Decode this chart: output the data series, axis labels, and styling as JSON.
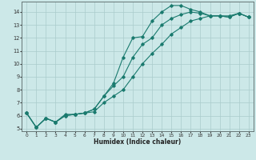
{
  "title": "",
  "xlabel": "Humidex (Indice chaleur)",
  "ylabel": "",
  "bg_color": "#cce8e8",
  "grid_color": "#aacccc",
  "line_color": "#1a7a6e",
  "xlim": [
    -0.5,
    23.5
  ],
  "ylim": [
    4.8,
    14.8
  ],
  "yticks": [
    5,
    6,
    7,
    8,
    9,
    10,
    11,
    12,
    13,
    14
  ],
  "xticks": [
    0,
    1,
    2,
    3,
    4,
    5,
    6,
    7,
    8,
    9,
    10,
    11,
    12,
    13,
    14,
    15,
    16,
    17,
    18,
    19,
    20,
    21,
    22,
    23
  ],
  "line1_x": [
    0,
    1,
    2,
    3,
    4,
    5,
    6,
    7,
    8,
    9,
    10,
    11,
    12,
    13,
    14,
    15,
    16,
    17,
    18,
    19,
    20,
    21,
    22,
    23
  ],
  "line1_y": [
    6.2,
    5.1,
    5.8,
    5.5,
    6.1,
    6.1,
    6.2,
    6.5,
    7.5,
    8.5,
    10.5,
    12.0,
    12.1,
    13.3,
    14.0,
    14.5,
    14.5,
    14.2,
    14.0,
    13.7,
    13.7,
    13.7,
    13.9,
    13.6
  ],
  "line2_x": [
    0,
    1,
    2,
    3,
    4,
    5,
    6,
    7,
    8,
    9,
    10,
    11,
    12,
    13,
    14,
    15,
    16,
    17,
    18,
    19,
    20,
    21,
    22,
    23
  ],
  "line2_y": [
    6.2,
    5.1,
    5.8,
    5.5,
    6.0,
    6.1,
    6.2,
    6.5,
    7.5,
    8.3,
    9.0,
    10.5,
    11.5,
    12.0,
    13.0,
    13.5,
    13.8,
    14.0,
    13.9,
    13.7,
    13.7,
    13.6,
    13.9,
    13.6
  ],
  "line3_x": [
    0,
    1,
    2,
    3,
    4,
    5,
    6,
    7,
    8,
    9,
    10,
    11,
    12,
    13,
    14,
    15,
    16,
    17,
    18,
    19,
    20,
    21,
    22,
    23
  ],
  "line3_y": [
    6.2,
    5.1,
    5.8,
    5.5,
    6.0,
    6.1,
    6.2,
    6.3,
    7.0,
    7.5,
    8.0,
    9.0,
    10.0,
    10.8,
    11.5,
    12.3,
    12.8,
    13.3,
    13.5,
    13.7,
    13.7,
    13.6,
    13.9,
    13.6
  ]
}
